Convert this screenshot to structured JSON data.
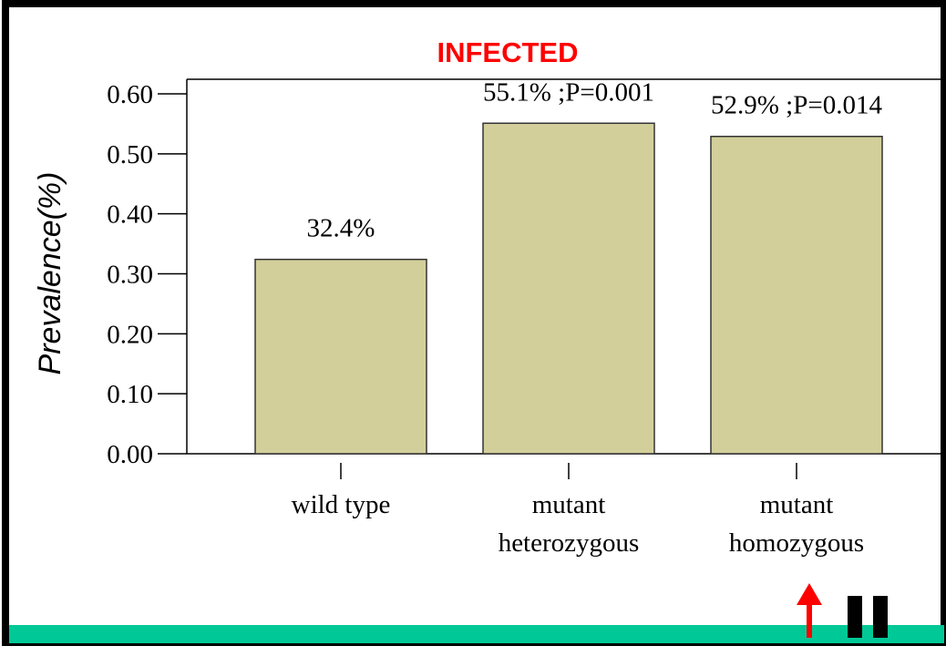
{
  "chart_data": {
    "type": "bar",
    "title": "INFECTED",
    "y_label": "Prevalence(%)",
    "categories": [
      [
        "wild type"
      ],
      [
        "mutant",
        "heterozygous"
      ],
      [
        "mutant",
        "homozygous"
      ]
    ],
    "values": [
      0.324,
      0.551,
      0.529
    ],
    "value_labels": [
      "32.4%",
      "55.1% ;P=0.001",
      "52.9% ;P=0.014"
    ],
    "color": "#d3cf9b",
    "ylim": [
      0,
      0.6
    ],
    "yticks": [
      {
        "value": 0,
        "label": "0.00"
      },
      {
        "value": 0.1,
        "label": "0.10"
      },
      {
        "value": 0.2,
        "label": "0.20"
      },
      {
        "value": 0.3,
        "label": "0.30"
      },
      {
        "value": 0.4,
        "label": "0.40"
      },
      {
        "value": 0.5,
        "label": "0.50"
      },
      {
        "value": 0.6,
        "label": "0.60"
      }
    ]
  }
}
